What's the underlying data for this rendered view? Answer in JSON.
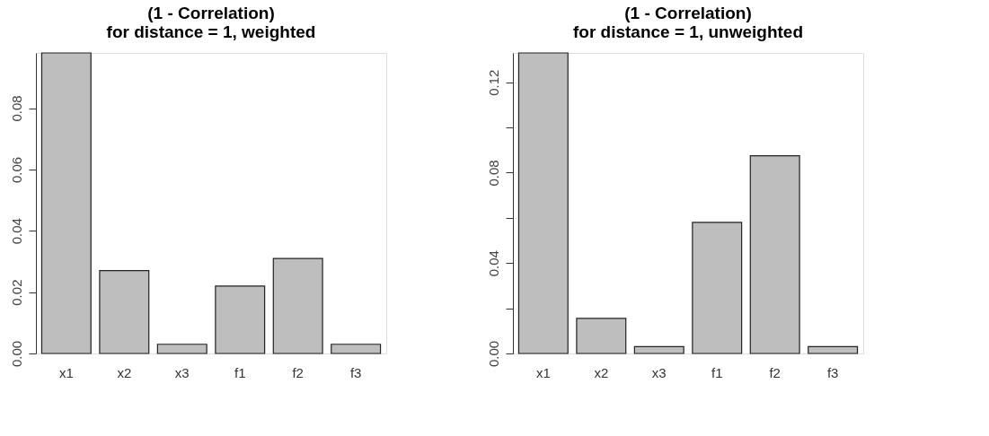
{
  "chart_data": [
    {
      "type": "bar",
      "title": "(1 - Correlation)\nfor distance = 1, weighted",
      "categories": [
        "x1",
        "x2",
        "x3",
        "f1",
        "f2",
        "f3"
      ],
      "values": [
        0.098,
        0.027,
        0.003,
        0.022,
        0.031,
        0.003
      ],
      "color": "#bebebe",
      "ylim": [
        0,
        0.098
      ],
      "yticks": [
        {
          "value": 0,
          "label": "0.00"
        },
        {
          "value": 0.02,
          "label": "0.02"
        },
        {
          "value": 0.04,
          "label": "0.04"
        },
        {
          "value": 0.06,
          "label": "0.06"
        },
        {
          "value": 0.08,
          "label": "0.08"
        }
      ],
      "grid": false
    },
    {
      "type": "bar",
      "title": "(1 - Correlation)\nfor distance = 1, unweighted",
      "categories": [
        "x1",
        "x2",
        "x3",
        "f1",
        "f2",
        "f3"
      ],
      "values": [
        0.133,
        0.0155,
        0.003,
        0.058,
        0.0875,
        0.003
      ],
      "color": "#bebebe",
      "ylim": [
        0,
        0.133
      ],
      "yticks": [
        {
          "value": 0,
          "label": "0.00"
        },
        {
          "value": 0.02,
          "label": null
        },
        {
          "value": 0.04,
          "label": "0.04"
        },
        {
          "value": 0.06,
          "label": null
        },
        {
          "value": 0.08,
          "label": "0.08"
        },
        {
          "value": 0.1,
          "label": null
        },
        {
          "value": 0.12,
          "label": "0.12"
        }
      ],
      "grid": false
    }
  ]
}
